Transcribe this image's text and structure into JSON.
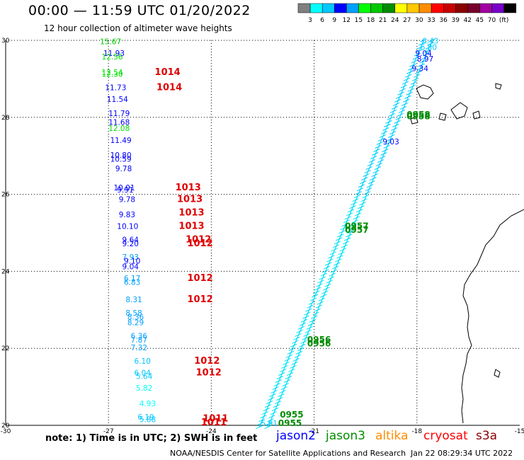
{
  "header": {
    "title": "00:00 — 11:59 UTC 01/20/2022",
    "subtitle": "12 hour collection of altimeter wave heights"
  },
  "legend": {
    "colors": [
      "#808080",
      "#00ffff",
      "#00c8ff",
      "#0000ff",
      "#00a0ff",
      "#00ff00",
      "#00c800",
      "#008c00",
      "#ffff00",
      "#ffc800",
      "#ff8c00",
      "#ff0000",
      "#c80000",
      "#8c0000",
      "#780028",
      "#a000a0",
      "#7800c8",
      "#000000"
    ],
    "labels": [
      "3",
      "6",
      "9",
      "12",
      "15",
      "18",
      "21",
      "24",
      "27",
      "30",
      "33",
      "36",
      "39",
      "42",
      "45",
      "70",
      "(ft)"
    ]
  },
  "axes": {
    "x_ticks": [
      "-30",
      "-27",
      "-24",
      "-21",
      "-18",
      "-15"
    ],
    "y_ticks": [
      "30",
      "28",
      "26",
      "24",
      "22",
      "20"
    ]
  },
  "swh_labels": [
    {
      "t": "15.67",
      "c": "#00c800",
      "lon": -27.25,
      "lat": 29.9
    },
    {
      "t": "11.93",
      "c": "#0000ff",
      "lon": -27.15,
      "lat": 29.6
    },
    {
      "t": "12.56",
      "c": "#00e000",
      "lon": -27.2,
      "lat": 29.5
    },
    {
      "t": "12.54",
      "c": "#00e000",
      "lon": -27.2,
      "lat": 29.1
    },
    {
      "t": "12.30",
      "c": "#00e000",
      "lon": -27.2,
      "lat": 29.05
    },
    {
      "t": "11.73",
      "c": "#0000ff",
      "lon": -27.1,
      "lat": 28.7
    },
    {
      "t": "11.54",
      "c": "#0000ff",
      "lon": -27.05,
      "lat": 28.4
    },
    {
      "t": "11.79",
      "c": "#0000ff",
      "lon": -27.0,
      "lat": 28.03
    },
    {
      "t": "11.68",
      "c": "#0000ff",
      "lon": -27.0,
      "lat": 27.8
    },
    {
      "t": "12.08",
      "c": "#00e000",
      "lon": -27.0,
      "lat": 27.65
    },
    {
      "t": "11.49",
      "c": "#0000ff",
      "lon": -26.95,
      "lat": 27.33
    },
    {
      "t": "10.80",
      "c": "#0000ff",
      "lon": -26.95,
      "lat": 26.95
    },
    {
      "t": "10.59",
      "c": "#0000ff",
      "lon": -26.95,
      "lat": 26.85
    },
    {
      "t": "9.78",
      "c": "#0000ff",
      "lon": -26.8,
      "lat": 26.6
    },
    {
      "t": "10.01",
      "c": "#0000ff",
      "lon": -26.85,
      "lat": 26.1
    },
    {
      "t": "9.91",
      "c": "#0000ff",
      "lon": -26.75,
      "lat": 26.05
    },
    {
      "t": "9.78",
      "c": "#0000ff",
      "lon": -26.7,
      "lat": 25.8
    },
    {
      "t": "9.83",
      "c": "#0000ff",
      "lon": -26.7,
      "lat": 25.4
    },
    {
      "t": "10.10",
      "c": "#0000ff",
      "lon": -26.75,
      "lat": 25.1
    },
    {
      "t": "9.64",
      "c": "#0000ff",
      "lon": -26.6,
      "lat": 24.75
    },
    {
      "t": "9.20",
      "c": "#0000ff",
      "lon": -26.6,
      "lat": 24.65
    },
    {
      "t": "7.93",
      "c": "#00a0ff",
      "lon": -26.6,
      "lat": 24.3
    },
    {
      "t": "9.10",
      "c": "#0000ff",
      "lon": -26.55,
      "lat": 24.2
    },
    {
      "t": "9.04",
      "c": "#0000ff",
      "lon": -26.6,
      "lat": 24.05
    },
    {
      "t": "6.17",
      "c": "#00a0ff",
      "lon": -26.55,
      "lat": 23.75
    },
    {
      "t": "6.83",
      "c": "#00a0ff",
      "lon": -26.55,
      "lat": 23.65
    },
    {
      "t": "8.31",
      "c": "#00a0ff",
      "lon": -26.5,
      "lat": 23.2
    },
    {
      "t": "8.58",
      "c": "#00a0ff",
      "lon": -26.5,
      "lat": 22.85
    },
    {
      "t": "8.36",
      "c": "#00a0ff",
      "lon": -26.45,
      "lat": 22.75
    },
    {
      "t": "8.29",
      "c": "#00a0ff",
      "lon": -26.45,
      "lat": 22.6
    },
    {
      "t": "6.36",
      "c": "#00a0ff",
      "lon": -26.35,
      "lat": 22.25
    },
    {
      "t": "7.87",
      "c": "#00a0ff",
      "lon": -26.35,
      "lat": 22.15
    },
    {
      "t": "7.32",
      "c": "#00a0ff",
      "lon": -26.35,
      "lat": 21.95
    },
    {
      "t": "6.10",
      "c": "#00c8ff",
      "lon": -26.25,
      "lat": 21.6
    },
    {
      "t": "6.04",
      "c": "#00c8ff",
      "lon": -26.25,
      "lat": 21.3
    },
    {
      "t": "5.64",
      "c": "#00c8ff",
      "lon": -26.2,
      "lat": 21.2
    },
    {
      "t": "5.82",
      "c": "#00ffff",
      "lon": -26.2,
      "lat": 20.9
    },
    {
      "t": "4.93",
      "c": "#00ffff",
      "lon": -26.1,
      "lat": 20.5
    },
    {
      "t": "6.19",
      "c": "#00c8ff",
      "lon": -26.15,
      "lat": 20.15
    },
    {
      "t": "5.88",
      "c": "#00c8ff",
      "lon": -26.1,
      "lat": 20.08
    }
  ],
  "pressure_labels": [
    {
      "t": "1014",
      "lon": -25.65,
      "lat": 29.1
    },
    {
      "t": "1014",
      "lon": -25.6,
      "lat": 28.7
    },
    {
      "t": "1013",
      "lon": -25.05,
      "lat": 26.1
    },
    {
      "t": "1013",
      "lon": -25.0,
      "lat": 25.8
    },
    {
      "t": "1013",
      "lon": -24.95,
      "lat": 25.45
    },
    {
      "t": "1013",
      "lon": -24.95,
      "lat": 25.1
    },
    {
      "t": "1012",
      "lon": -24.75,
      "lat": 24.75
    },
    {
      "t": "1012",
      "lon": -24.7,
      "lat": 24.65
    },
    {
      "t": "1012",
      "lon": -24.7,
      "lat": 23.75
    },
    {
      "t": "1012",
      "lon": -24.7,
      "lat": 23.2
    },
    {
      "t": "1012",
      "lon": -24.5,
      "lat": 21.6
    },
    {
      "t": "1012",
      "lon": -24.45,
      "lat": 21.3
    },
    {
      "t": "1011",
      "lon": -24.25,
      "lat": 20.1
    },
    {
      "t": "1011",
      "lon": -24.3,
      "lat": 20.0
    }
  ],
  "time_labels": [
    {
      "t": "0958",
      "lon": -18.3,
      "lat": 28.0
    },
    {
      "t": "0958",
      "lon": -18.3,
      "lat": 27.95
    },
    {
      "t": "0957",
      "lon": -20.1,
      "lat": 25.1
    },
    {
      "t": "0957",
      "lon": -20.1,
      "lat": 25.0
    },
    {
      "t": "0956",
      "lon": -21.2,
      "lat": 22.15
    },
    {
      "t": "0956",
      "lon": -21.2,
      "lat": 22.05
    },
    {
      "t": "0955",
      "lon": -22.0,
      "lat": 20.2
    },
    {
      "t": "0955",
      "lon": -22.05,
      "lat": 19.98
    }
  ],
  "track_top_labels": [
    {
      "t": "6.43",
      "c": "#00c8ff",
      "lon": -17.85,
      "lat": 29.92
    },
    {
      "t": "6.80",
      "c": "#00c8ff",
      "lon": -17.9,
      "lat": 29.75
    },
    {
      "t": "9.04",
      "c": "#0000ff",
      "lon": -18.05,
      "lat": 29.6
    },
    {
      "t": "8.97",
      "c": "#0000ff",
      "lon": -18.0,
      "lat": 29.45
    },
    {
      "t": "9.34",
      "c": "#0000ff",
      "lon": -18.15,
      "lat": 29.2
    },
    {
      "t": "9.03",
      "c": "#0000ff",
      "lon": -19.0,
      "lat": 27.3
    },
    {
      "t": "5.91",
      "c": "#00c8ff",
      "lon": -22.55,
      "lat": 19.98
    }
  ],
  "footer": {
    "note": "note:  1) Time is in UTC;  2) SWH is in feet",
    "sats": [
      {
        "name": "jason2",
        "color": "#0000ff"
      },
      {
        "name": "jason3",
        "color": "#008c00"
      },
      {
        "name": "altika",
        "color": "#ff8c00"
      },
      {
        "name": "cryosat",
        "color": "#ff0000"
      },
      {
        "name": "s3a",
        "color": "#8c0000"
      }
    ],
    "credit": "NOAA/NESDIS Center for Satellite Applications and Research",
    "timestamp": "Jan 22 08:29:34 UTC 2022"
  }
}
